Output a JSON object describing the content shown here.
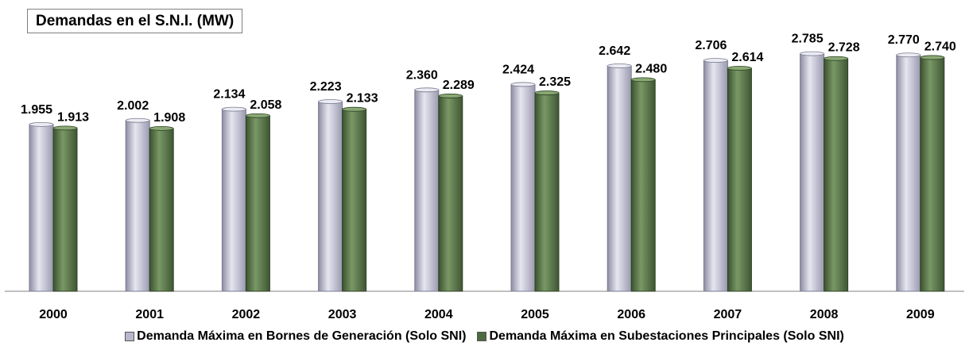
{
  "chart_data": {
    "type": "bar",
    "title": "Demandas en el S.N.I. (MW)",
    "categories": [
      "2000",
      "2001",
      "2002",
      "2003",
      "2004",
      "2005",
      "2006",
      "2007",
      "2008",
      "2009"
    ],
    "series": [
      {
        "name": "Demanda Máxima en Bornes de Generación (Solo SNI)",
        "values": [
          1955,
          2002,
          2134,
          2223,
          2360,
          2424,
          2642,
          2706,
          2785,
          2770
        ],
        "labels": [
          "1.955",
          "2.002",
          "2.134",
          "2.223",
          "2.360",
          "2.424",
          "2.642",
          "2.706",
          "2.785",
          "2.770"
        ],
        "color": "#b8b8cc"
      },
      {
        "name": "Demanda Máxima en Subestaciones Principales (Solo SNI)",
        "values": [
          1913,
          1908,
          2058,
          2133,
          2289,
          2325,
          2480,
          2614,
          2728,
          2740
        ],
        "labels": [
          "1.913",
          "1.908",
          "2.058",
          "2.133",
          "2.289",
          "2.325",
          "2.480",
          "2.614",
          "2.728",
          "2.740"
        ],
        "color": "#4e6a3e"
      }
    ],
    "xlabel": "",
    "ylabel": "",
    "ylim": [
      0,
      2900
    ],
    "grid": false,
    "legend": "bottom"
  }
}
